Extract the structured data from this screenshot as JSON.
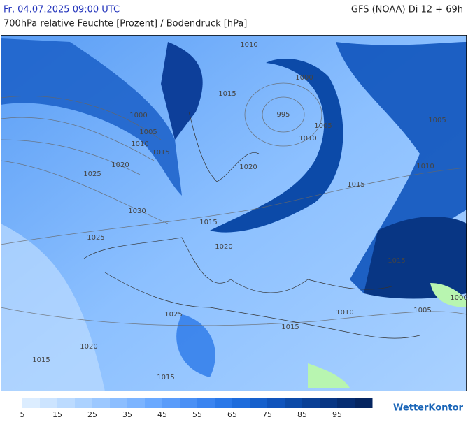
{
  "header": {
    "datetime": "Fr, 04.07.2025 09:00 UTC",
    "model": "GFS (NOAA) Di 12 + 69h",
    "subtitle": "700hPa relative Feuchte [Prozent] / Bodendruck [hPa]"
  },
  "isobar_labels": [
    "1010",
    "1000",
    "1015",
    "995",
    "1000",
    "1005",
    "1005",
    "1010",
    "1015",
    "1010",
    "1005",
    "1020",
    "1020",
    "1025",
    "1010",
    "1015",
    "1030",
    "1015",
    "1025",
    "1020",
    "1015",
    "1000",
    "1025",
    "1010",
    "1005",
    "1015",
    "1020",
    "1015",
    "1015"
  ],
  "colorbar": {
    "lim": [
      5,
      105
    ],
    "ticks": [
      5,
      15,
      25,
      35,
      45,
      55,
      65,
      75,
      85,
      95
    ],
    "colors": [
      "#dcedff",
      "#cce4ff",
      "#bcdbff",
      "#acd2ff",
      "#9cc8ff",
      "#8cbeff",
      "#7cb4ff",
      "#6aa9ff",
      "#5a9cfa",
      "#4a90f5",
      "#3a84f0",
      "#2a78e8",
      "#1e6cdc",
      "#1660cc",
      "#1054bc",
      "#0c4aa8",
      "#0a4096",
      "#083684",
      "#062d72",
      "#052560"
    ]
  },
  "logo": "WetterKontor"
}
